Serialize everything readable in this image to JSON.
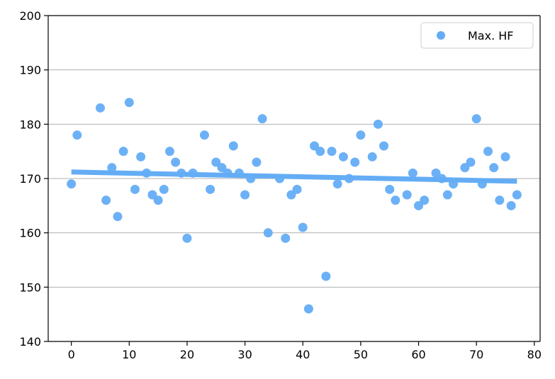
{
  "chart_data": {
    "type": "scatter",
    "title": "",
    "xlabel": "",
    "ylabel": "",
    "xlim": [
      -4,
      81
    ],
    "ylim": [
      140,
      200
    ],
    "xticks": [
      0,
      10,
      20,
      30,
      40,
      50,
      60,
      70,
      80
    ],
    "yticks": [
      140,
      150,
      160,
      170,
      180,
      190,
      200
    ],
    "grid": "horizontal",
    "legend": "top-right",
    "series": [
      {
        "name": "Max. HF",
        "type": "scatter",
        "color": "#64adf5",
        "points": [
          [
            0,
            169
          ],
          [
            1,
            178
          ],
          [
            5,
            183
          ],
          [
            6,
            166
          ],
          [
            7,
            172
          ],
          [
            8,
            163
          ],
          [
            9,
            175
          ],
          [
            10,
            184
          ],
          [
            11,
            168
          ],
          [
            12,
            174
          ],
          [
            13,
            171
          ],
          [
            14,
            167
          ],
          [
            15,
            166
          ],
          [
            16,
            168
          ],
          [
            17,
            175
          ],
          [
            18,
            173
          ],
          [
            19,
            171
          ],
          [
            20,
            159
          ],
          [
            21,
            171
          ],
          [
            23,
            178
          ],
          [
            24,
            168
          ],
          [
            25,
            173
          ],
          [
            26,
            172
          ],
          [
            27,
            171
          ],
          [
            28,
            176
          ],
          [
            29,
            171
          ],
          [
            30,
            167
          ],
          [
            31,
            170
          ],
          [
            32,
            173
          ],
          [
            33,
            181
          ],
          [
            34,
            160
          ],
          [
            36,
            170
          ],
          [
            37,
            159
          ],
          [
            38,
            167
          ],
          [
            39,
            168
          ],
          [
            40,
            161
          ],
          [
            41,
            146
          ],
          [
            42,
            176
          ],
          [
            43,
            175
          ],
          [
            44,
            152
          ],
          [
            45,
            175
          ],
          [
            46,
            169
          ],
          [
            47,
            174
          ],
          [
            48,
            170
          ],
          [
            49,
            173
          ],
          [
            50,
            178
          ],
          [
            52,
            174
          ],
          [
            53,
            180
          ],
          [
            54,
            176
          ],
          [
            55,
            168
          ],
          [
            56,
            166
          ],
          [
            58,
            167
          ],
          [
            59,
            171
          ],
          [
            60,
            165
          ],
          [
            61,
            166
          ],
          [
            63,
            171
          ],
          [
            64,
            170
          ],
          [
            65,
            167
          ],
          [
            66,
            169
          ],
          [
            68,
            172
          ],
          [
            69,
            173
          ],
          [
            70,
            181
          ],
          [
            71,
            169
          ],
          [
            72,
            175
          ],
          [
            73,
            172
          ],
          [
            74,
            166
          ],
          [
            75,
            174
          ],
          [
            76,
            165
          ],
          [
            77,
            167
          ]
        ]
      }
    ],
    "trendline": {
      "color": "#64adf5",
      "x": [
        0,
        77
      ],
      "y": [
        171.2,
        169.5
      ]
    }
  }
}
